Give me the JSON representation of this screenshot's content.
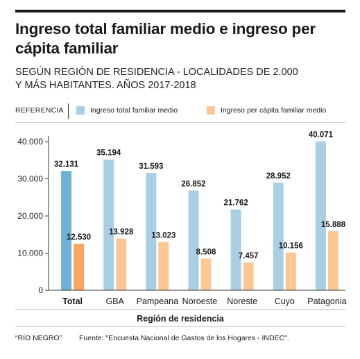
{
  "header": {
    "title": "Ingreso total familiar medio e ingreso per cápita familiar",
    "subtitle_line1": "SEGÚN REGIÓN DE RESIDENCIA - LOCALIDADES DE 2.000",
    "subtitle_line2": "Y MÁS HABITANTES. AÑOS 2017-2018"
  },
  "legend": {
    "label": "REFERENCIA",
    "items": [
      {
        "label": "Ingreso total familiar medio",
        "color": "#a9cfe4"
      },
      {
        "label": "Ingreso per cápita familiar medio",
        "color": "#fcc793"
      }
    ]
  },
  "footer": {
    "source_credit": "“RÍO NEGRO”",
    "source": "Fuente: \"Encuesta Nacional de Gastos de los Hogares - INDEC\"."
  },
  "chart_data": {
    "type": "bar",
    "title": "Ingreso total familiar medio e ingreso per cápita familiar",
    "subtitle": "SEGÚN REGIÓN DE RESIDENCIA - LOCALIDADES DE 2.000 Y MÁS HABITANTES. AÑOS 2017-2018",
    "xlabel": "Región de residencia",
    "ylabel": "",
    "ylim": [
      0,
      40000
    ],
    "yticks": [
      0,
      10000,
      20000,
      30000,
      40000
    ],
    "ytick_labels": [
      "0",
      "10.000",
      "20.000",
      "30.000",
      "40.000"
    ],
    "categories": [
      "Total",
      "GBA",
      "Pampeana",
      "Noroeste",
      "Noreste",
      "Cuyo",
      "Patagonia"
    ],
    "highlight_category": "Total",
    "series": [
      {
        "name": "Ingreso total familiar medio",
        "color": "#a9cfe4",
        "highlight_color": "#6eb1d6",
        "values": [
          32131,
          35194,
          31593,
          26852,
          21762,
          28952,
          40071
        ],
        "labels": [
          "32.131",
          "35.194",
          "31.593",
          "26.852",
          "21.762",
          "28.952",
          "40.071"
        ]
      },
      {
        "name": "Ingreso per cápita familiar medio",
        "color": "#fcc793",
        "highlight_color": "#fba760",
        "values": [
          12530,
          13928,
          13023,
          8508,
          7457,
          10156,
          15888
        ],
        "labels": [
          "12.530",
          "13.928",
          "13.023",
          "8.508",
          "7.457",
          "10.156",
          "15.888"
        ]
      }
    ],
    "grid": false,
    "legend_position": "top"
  }
}
